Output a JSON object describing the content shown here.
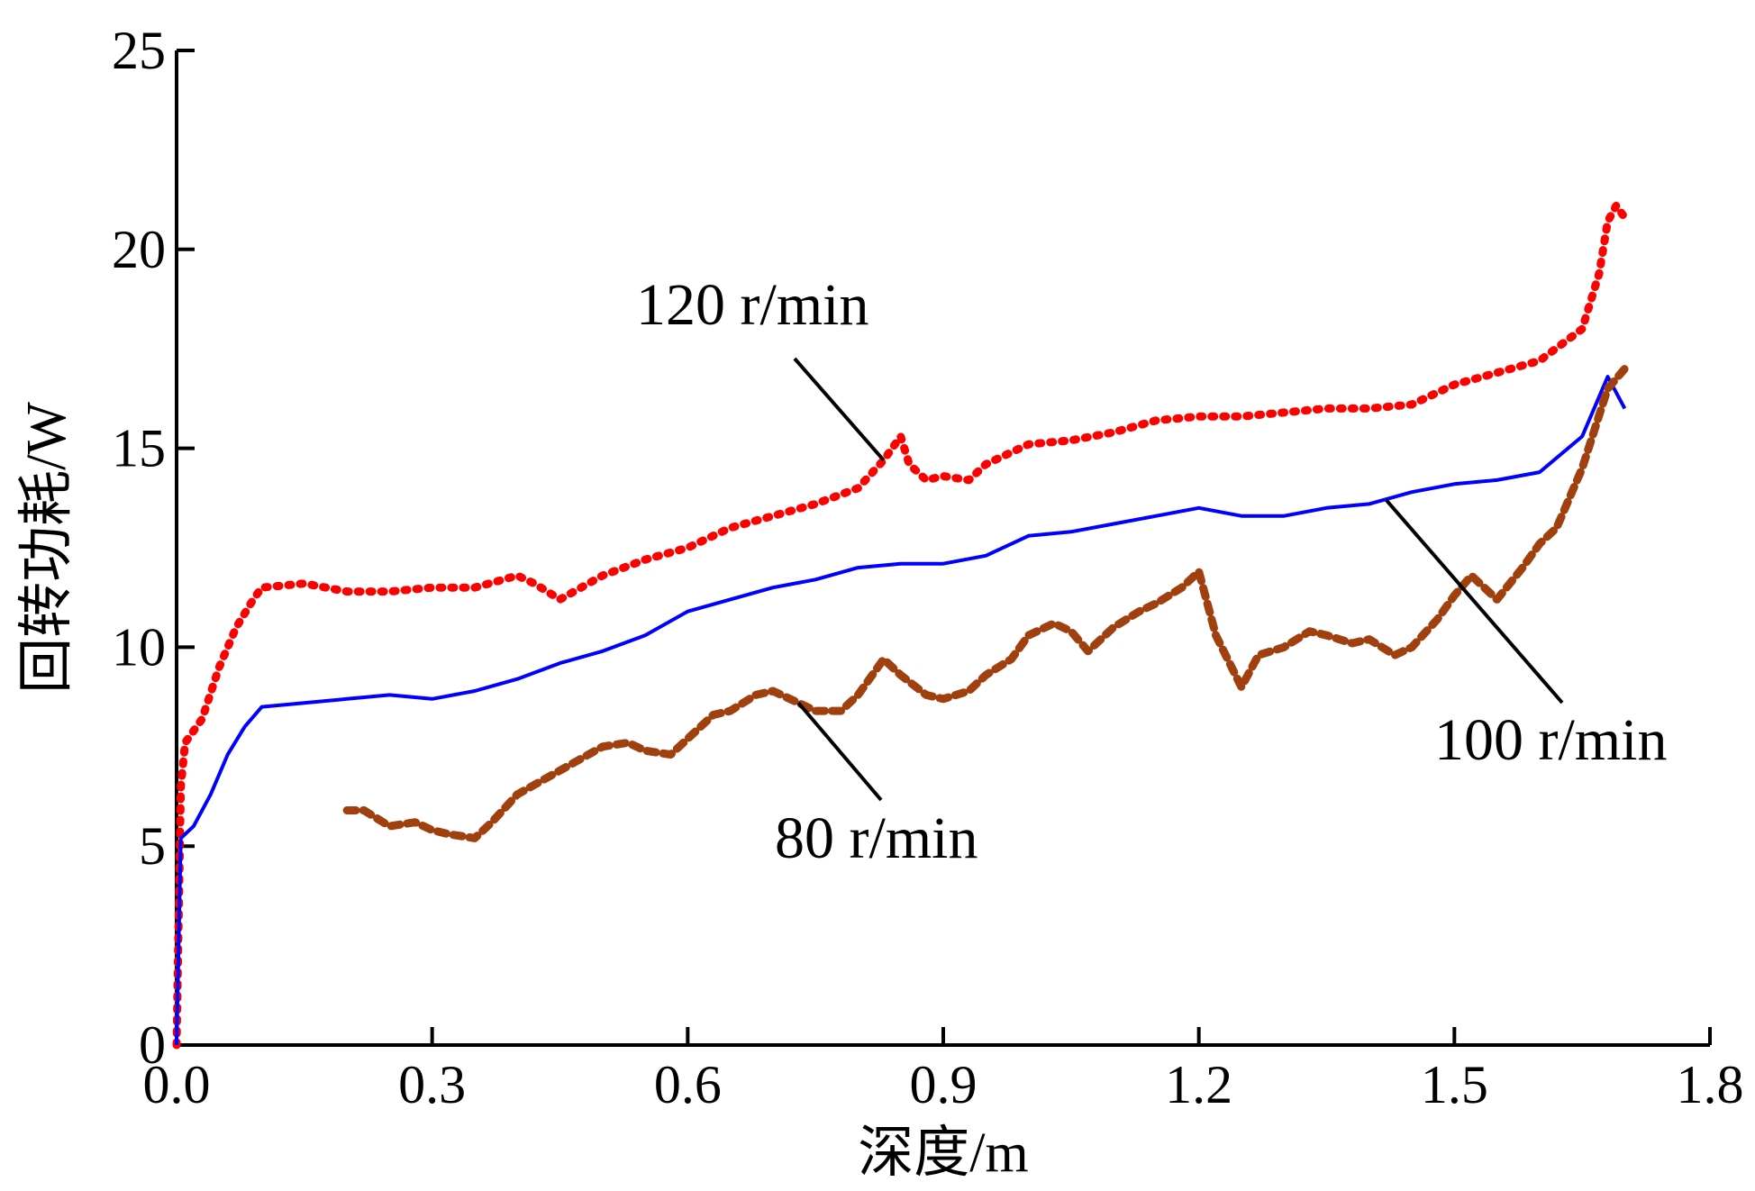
{
  "chart_data": {
    "type": "line",
    "xlabel": "深度/m",
    "ylabel": "回转功耗/W",
    "xlim": [
      0,
      1.8
    ],
    "ylim": [
      0,
      25
    ],
    "x_ticks": [
      "0.0",
      "0.3",
      "0.6",
      "0.9",
      "1.2",
      "1.5",
      "1.8"
    ],
    "y_ticks": [
      "0",
      "5",
      "10",
      "15",
      "20",
      "25"
    ],
    "grid": false,
    "legend": "none",
    "series": [
      {
        "name": "120 r/min",
        "color": "#ff0000",
        "style": "dotted-thick",
        "x": [
          0.0,
          0.005,
          0.01,
          0.03,
          0.05,
          0.07,
          0.09,
          0.1,
          0.15,
          0.2,
          0.25,
          0.3,
          0.35,
          0.4,
          0.42,
          0.45,
          0.5,
          0.55,
          0.6,
          0.65,
          0.7,
          0.75,
          0.8,
          0.83,
          0.85,
          0.86,
          0.88,
          0.9,
          0.93,
          0.95,
          1.0,
          1.05,
          1.1,
          1.15,
          1.2,
          1.25,
          1.3,
          1.35,
          1.4,
          1.45,
          1.5,
          1.55,
          1.6,
          1.65,
          1.67,
          1.68,
          1.69,
          1.7
        ],
        "y": [
          0.0,
          6.5,
          7.6,
          8.2,
          9.5,
          10.5,
          11.2,
          11.5,
          11.6,
          11.4,
          11.4,
          11.5,
          11.5,
          11.8,
          11.6,
          11.2,
          11.8,
          12.2,
          12.5,
          13.0,
          13.3,
          13.6,
          14.0,
          14.7,
          15.3,
          14.6,
          14.2,
          14.3,
          14.2,
          14.6,
          15.1,
          15.2,
          15.4,
          15.7,
          15.8,
          15.8,
          15.9,
          16.0,
          16.0,
          16.1,
          16.6,
          16.9,
          17.2,
          18.0,
          19.4,
          20.7,
          21.1,
          20.8
        ]
      },
      {
        "name": "100 r/min",
        "color": "#0000ff",
        "style": "solid",
        "x": [
          0.0,
          0.005,
          0.02,
          0.04,
          0.06,
          0.08,
          0.1,
          0.15,
          0.2,
          0.25,
          0.3,
          0.35,
          0.4,
          0.45,
          0.5,
          0.55,
          0.6,
          0.65,
          0.7,
          0.75,
          0.8,
          0.85,
          0.9,
          0.95,
          1.0,
          1.05,
          1.1,
          1.15,
          1.2,
          1.25,
          1.3,
          1.35,
          1.4,
          1.45,
          1.5,
          1.55,
          1.6,
          1.65,
          1.68,
          1.7
        ],
        "y": [
          0.0,
          5.2,
          5.5,
          6.3,
          7.3,
          8.0,
          8.5,
          8.6,
          8.7,
          8.8,
          8.7,
          8.9,
          9.2,
          9.6,
          9.9,
          10.3,
          10.9,
          11.2,
          11.5,
          11.7,
          12.0,
          12.1,
          12.1,
          12.3,
          12.8,
          12.9,
          13.1,
          13.3,
          13.5,
          13.3,
          13.3,
          13.5,
          13.6,
          13.9,
          14.1,
          14.2,
          14.4,
          15.3,
          16.8,
          16.0
        ]
      },
      {
        "name": "80 r/min",
        "color": "#a0400f",
        "style": "dashed-thick",
        "x": [
          0.2,
          0.22,
          0.25,
          0.28,
          0.3,
          0.32,
          0.35,
          0.37,
          0.4,
          0.45,
          0.5,
          0.53,
          0.55,
          0.58,
          0.6,
          0.63,
          0.65,
          0.68,
          0.7,
          0.73,
          0.75,
          0.78,
          0.8,
          0.83,
          0.85,
          0.88,
          0.9,
          0.93,
          0.95,
          0.98,
          1.0,
          1.03,
          1.05,
          1.07,
          1.1,
          1.13,
          1.15,
          1.18,
          1.2,
          1.22,
          1.25,
          1.27,
          1.3,
          1.33,
          1.35,
          1.38,
          1.4,
          1.43,
          1.45,
          1.48,
          1.5,
          1.52,
          1.55,
          1.58,
          1.6,
          1.62,
          1.65,
          1.68,
          1.7
        ],
        "y": [
          5.9,
          5.9,
          5.5,
          5.6,
          5.4,
          5.3,
          5.2,
          5.6,
          6.3,
          6.9,
          7.5,
          7.6,
          7.4,
          7.3,
          7.7,
          8.3,
          8.4,
          8.8,
          8.9,
          8.6,
          8.4,
          8.4,
          8.8,
          9.7,
          9.3,
          8.8,
          8.7,
          8.9,
          9.3,
          9.7,
          10.3,
          10.6,
          10.4,
          9.9,
          10.5,
          10.9,
          11.1,
          11.5,
          11.9,
          10.3,
          9.0,
          9.8,
          10.0,
          10.4,
          10.3,
          10.1,
          10.2,
          9.8,
          10.0,
          10.7,
          11.3,
          11.8,
          11.2,
          12.0,
          12.6,
          13.0,
          14.5,
          16.5,
          17.0
        ]
      }
    ],
    "annotations": [
      {
        "text": "120 r/min",
        "series": "120 r/min",
        "x": 0.83,
        "y": 14.7
      },
      {
        "text": "100 r/min",
        "series": "100 r/min",
        "x": 1.42,
        "y": 13.7
      },
      {
        "text": "80 r/min",
        "series": "80 r/min",
        "x": 0.73,
        "y": 8.6
      }
    ]
  }
}
